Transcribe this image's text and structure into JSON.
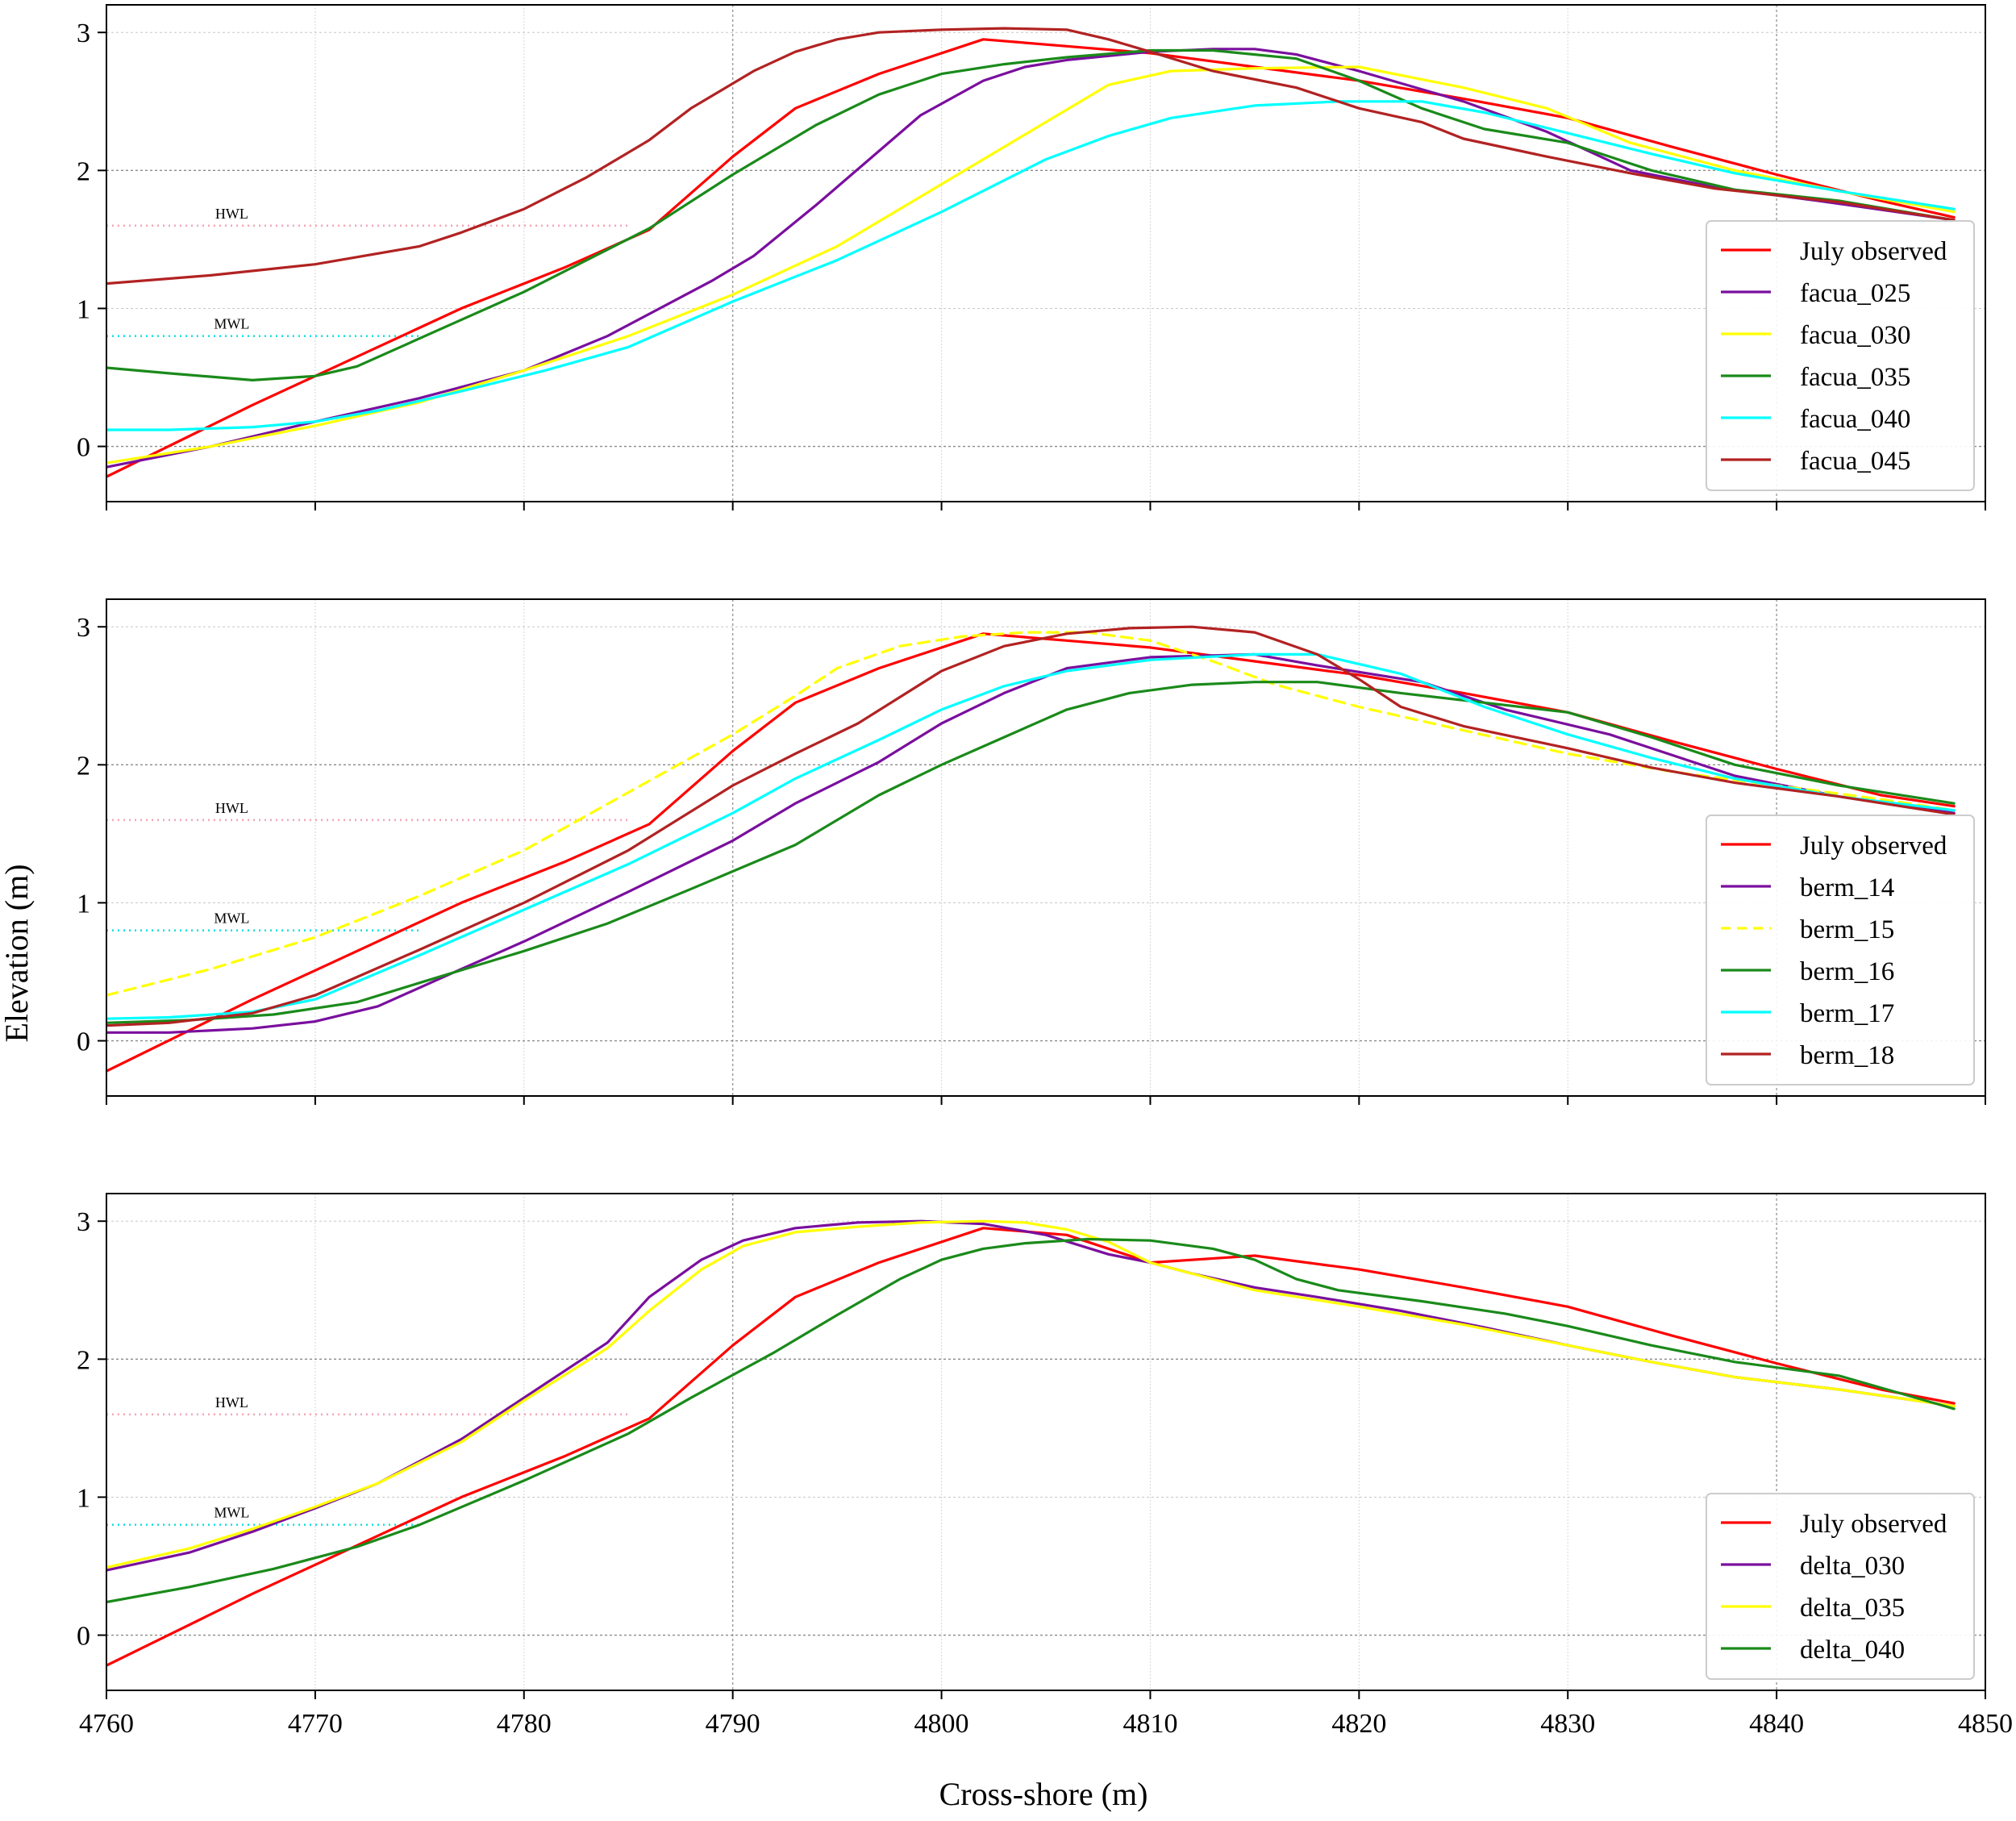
{
  "figure": {
    "xlabel": "Cross-shore (m)",
    "ylabel": "Elevation (m)"
  },
  "chart_data": [
    {
      "type": "line",
      "panel": "top",
      "xlim": [
        4760,
        4850
      ],
      "ylim": [
        -0.4,
        3.2
      ],
      "xticks": [
        4760,
        4770,
        4780,
        4790,
        4800,
        4810,
        4820,
        4830,
        4840,
        4850
      ],
      "yticks": [
        0,
        1,
        2,
        3
      ],
      "grid": true,
      "show_xtick_labels": false,
      "legend_position": "bottom-right",
      "reference_lines": [
        {
          "name": "HWL",
          "y": 1.6,
          "x_range": [
            4760,
            4785
          ],
          "color": "#f4a6b8",
          "style": "dotted"
        },
        {
          "name": "MWL",
          "y": 0.8,
          "x_range": [
            4760,
            4775
          ],
          "color": "#1be0e0",
          "style": "dotted"
        }
      ],
      "series": [
        {
          "name": "July observed",
          "color": "#ff0000",
          "dash": false,
          "x": [
            4760,
            4767,
            4772,
            4777,
            4782,
            4786,
            4790,
            4793,
            4797,
            4802,
            4806,
            4810,
            4815,
            4820,
            4825,
            4830,
            4835,
            4840,
            4845,
            4848.5
          ],
          "y": [
            -0.22,
            0.3,
            0.65,
            1.0,
            1.3,
            1.57,
            2.1,
            2.45,
            2.7,
            2.95,
            2.9,
            2.85,
            2.75,
            2.65,
            2.52,
            2.38,
            2.17,
            1.97,
            1.78,
            1.66
          ]
        },
        {
          "name": "facua_025",
          "color": "#7a0f9e",
          "dash": false,
          "x": [
            4760,
            4765,
            4770,
            4775,
            4780,
            4784,
            4789,
            4791,
            4794,
            4799,
            4802,
            4804,
            4806,
            4810,
            4813,
            4815,
            4817,
            4820,
            4825,
            4829,
            4833,
            4837,
            4842,
            4848.5
          ],
          "y": [
            -0.15,
            0.0,
            0.18,
            0.35,
            0.55,
            0.8,
            1.2,
            1.38,
            1.75,
            2.4,
            2.65,
            2.75,
            2.8,
            2.86,
            2.88,
            2.88,
            2.84,
            2.72,
            2.5,
            2.28,
            2.0,
            1.88,
            1.78,
            1.64
          ]
        },
        {
          "name": "facua_030",
          "color": "#ffff00",
          "dash": false,
          "x": [
            4760,
            4765,
            4770,
            4775,
            4780,
            4785,
            4790,
            4795,
            4800,
            4805,
            4808,
            4811,
            4815,
            4820,
            4825,
            4829,
            4833,
            4838,
            4843,
            4848.5
          ],
          "y": [
            -0.12,
            0.0,
            0.15,
            0.32,
            0.55,
            0.8,
            1.1,
            1.45,
            1.9,
            2.35,
            2.62,
            2.72,
            2.74,
            2.75,
            2.6,
            2.45,
            2.2,
            2.0,
            1.85,
            1.7
          ]
        },
        {
          "name": "facua_035",
          "color": "#1a8a1a",
          "dash": false,
          "x": [
            4760,
            4763,
            4767,
            4770,
            4772,
            4776,
            4780,
            4786,
            4790,
            4794,
            4797,
            4800,
            4803,
            4806,
            4810,
            4813,
            4817,
            4820,
            4823,
            4826,
            4830,
            4834,
            4838,
            4843,
            4848.5
          ],
          "y": [
            0.57,
            0.53,
            0.48,
            0.51,
            0.58,
            0.85,
            1.12,
            1.58,
            1.97,
            2.33,
            2.55,
            2.7,
            2.77,
            2.82,
            2.87,
            2.87,
            2.81,
            2.65,
            2.45,
            2.3,
            2.2,
            2.0,
            1.86,
            1.78,
            1.64
          ]
        },
        {
          "name": "facua_040",
          "color": "#00ffff",
          "dash": false,
          "x": [
            4760,
            4763,
            4767,
            4770,
            4773,
            4777,
            4781,
            4785,
            4790,
            4795,
            4800,
            4805,
            4808,
            4811,
            4815,
            4819,
            4823,
            4826,
            4830,
            4834,
            4838,
            4843,
            4848.5
          ],
          "y": [
            0.12,
            0.12,
            0.14,
            0.18,
            0.26,
            0.4,
            0.55,
            0.72,
            1.05,
            1.35,
            1.7,
            2.08,
            2.25,
            2.38,
            2.47,
            2.5,
            2.5,
            2.42,
            2.27,
            2.12,
            1.98,
            1.85,
            1.72
          ]
        },
        {
          "name": "facua_045",
          "color": "#b22222",
          "dash": false,
          "x": [
            4760,
            4765,
            4770,
            4775,
            4777,
            4780,
            4783,
            4786,
            4788,
            4791,
            4793,
            4795,
            4797,
            4800,
            4803,
            4806,
            4808,
            4810,
            4813,
            4817,
            4820,
            4823,
            4825,
            4829,
            4833,
            4837,
            4843,
            4848.5
          ],
          "y": [
            1.18,
            1.24,
            1.32,
            1.45,
            1.55,
            1.72,
            1.95,
            2.22,
            2.45,
            2.72,
            2.86,
            2.95,
            3.0,
            3.02,
            3.03,
            3.02,
            2.95,
            2.86,
            2.72,
            2.6,
            2.45,
            2.35,
            2.23,
            2.1,
            1.98,
            1.87,
            1.77,
            1.64
          ]
        }
      ]
    },
    {
      "type": "line",
      "panel": "middle",
      "xlim": [
        4760,
        4850
      ],
      "ylim": [
        -0.4,
        3.2
      ],
      "xticks": [
        4760,
        4770,
        4780,
        4790,
        4800,
        4810,
        4820,
        4830,
        4840,
        4850
      ],
      "yticks": [
        0,
        1,
        2,
        3
      ],
      "grid": true,
      "show_xtick_labels": false,
      "legend_position": "bottom-right",
      "reference_lines": [
        {
          "name": "HWL",
          "y": 1.6,
          "x_range": [
            4760,
            4785
          ],
          "color": "#f4a6b8",
          "style": "dotted"
        },
        {
          "name": "MWL",
          "y": 0.8,
          "x_range": [
            4760,
            4775
          ],
          "color": "#1be0e0",
          "style": "dotted"
        }
      ],
      "series": [
        {
          "name": "July observed",
          "color": "#ff0000",
          "dash": false,
          "x": [
            4760,
            4767,
            4772,
            4777,
            4782,
            4786,
            4790,
            4793,
            4797,
            4802,
            4806,
            4810,
            4815,
            4820,
            4825,
            4830,
            4835,
            4840,
            4845,
            4848.5
          ],
          "y": [
            -0.22,
            0.3,
            0.65,
            1.0,
            1.3,
            1.57,
            2.1,
            2.45,
            2.7,
            2.95,
            2.9,
            2.85,
            2.75,
            2.65,
            2.52,
            2.38,
            2.17,
            1.97,
            1.78,
            1.7
          ]
        },
        {
          "name": "berm_14",
          "color": "#7a0f9e",
          "dash": false,
          "x": [
            4760,
            4763,
            4767,
            4770,
            4773,
            4777,
            4780,
            4785,
            4790,
            4793,
            4797,
            4800,
            4803,
            4806,
            4810,
            4815,
            4818,
            4823,
            4827,
            4832,
            4838,
            4843,
            4848.5
          ],
          "y": [
            0.06,
            0.06,
            0.09,
            0.14,
            0.25,
            0.52,
            0.72,
            1.08,
            1.45,
            1.72,
            2.02,
            2.3,
            2.52,
            2.7,
            2.78,
            2.8,
            2.72,
            2.6,
            2.4,
            2.22,
            1.92,
            1.77,
            1.65
          ]
        },
        {
          "name": "berm_15",
          "color": "#ffff00",
          "dash": true,
          "x": [
            4760,
            4765,
            4770,
            4775,
            4780,
            4785,
            4790,
            4793,
            4795,
            4798,
            4801,
            4804,
            4807,
            4810,
            4813,
            4816,
            4820,
            4825,
            4830,
            4835,
            4840,
            4845,
            4848.5
          ],
          "y": [
            0.33,
            0.52,
            0.75,
            1.05,
            1.38,
            1.8,
            2.22,
            2.5,
            2.7,
            2.86,
            2.93,
            2.96,
            2.96,
            2.9,
            2.75,
            2.58,
            2.42,
            2.25,
            2.08,
            1.95,
            1.85,
            1.75,
            1.67
          ]
        },
        {
          "name": "berm_16",
          "color": "#1a8a1a",
          "dash": false,
          "x": [
            4760,
            4764,
            4768,
            4772,
            4775,
            4780,
            4784,
            4788,
            4793,
            4797,
            4800,
            4803,
            4806,
            4809,
            4812,
            4815,
            4818,
            4822,
            4826,
            4830,
            4834,
            4838,
            4843,
            4848.5
          ],
          "y": [
            0.13,
            0.15,
            0.19,
            0.28,
            0.42,
            0.65,
            0.85,
            1.1,
            1.42,
            1.78,
            2.0,
            2.2,
            2.4,
            2.52,
            2.58,
            2.6,
            2.6,
            2.52,
            2.45,
            2.38,
            2.2,
            2.0,
            1.85,
            1.72
          ]
        },
        {
          "name": "berm_17",
          "color": "#00ffff",
          "dash": false,
          "x": [
            4760,
            4763,
            4767,
            4770,
            4775,
            4780,
            4785,
            4790,
            4793,
            4797,
            4800,
            4803,
            4806,
            4810,
            4815,
            4818,
            4822,
            4826,
            4830,
            4834,
            4838,
            4843,
            4848.5
          ],
          "y": [
            0.16,
            0.17,
            0.21,
            0.3,
            0.62,
            0.95,
            1.28,
            1.65,
            1.9,
            2.18,
            2.4,
            2.57,
            2.68,
            2.76,
            2.8,
            2.8,
            2.66,
            2.42,
            2.22,
            2.05,
            1.9,
            1.77,
            1.67
          ]
        },
        {
          "name": "berm_18",
          "color": "#b22222",
          "dash": false,
          "x": [
            4760,
            4763,
            4767,
            4770,
            4775,
            4780,
            4785,
            4790,
            4793,
            4796,
            4800,
            4803,
            4806,
            4809,
            4812,
            4815,
            4818,
            4820,
            4822,
            4825,
            4830,
            4834,
            4838,
            4843,
            4848.5
          ],
          "y": [
            0.11,
            0.13,
            0.2,
            0.33,
            0.66,
            1.0,
            1.38,
            1.85,
            2.08,
            2.3,
            2.68,
            2.86,
            2.95,
            2.99,
            3.0,
            2.96,
            2.8,
            2.62,
            2.42,
            2.28,
            2.12,
            1.98,
            1.87,
            1.77,
            1.64
          ]
        }
      ]
    },
    {
      "type": "line",
      "panel": "bottom",
      "xlim": [
        4760,
        4850
      ],
      "ylim": [
        -0.4,
        3.2
      ],
      "xticks": [
        4760,
        4770,
        4780,
        4790,
        4800,
        4810,
        4820,
        4830,
        4840,
        4850
      ],
      "yticks": [
        0,
        1,
        2,
        3
      ],
      "grid": true,
      "show_xtick_labels": true,
      "legend_position": "bottom-right",
      "reference_lines": [
        {
          "name": "HWL",
          "y": 1.6,
          "x_range": [
            4760,
            4785
          ],
          "color": "#f4a6b8",
          "style": "dotted"
        },
        {
          "name": "MWL",
          "y": 0.8,
          "x_range": [
            4760,
            4775
          ],
          "color": "#1be0e0",
          "style": "dotted"
        }
      ],
      "series": [
        {
          "name": "July observed",
          "color": "#ff0000",
          "dash": false,
          "x": [
            4760,
            4767,
            4772,
            4777,
            4782,
            4786,
            4790,
            4793,
            4797,
            4802,
            4806,
            4810,
            4815,
            4820,
            4825,
            4830,
            4835,
            4840,
            4845,
            4848.5
          ],
          "y": [
            -0.22,
            0.3,
            0.65,
            1.0,
            1.3,
            1.57,
            2.1,
            2.45,
            2.7,
            2.95,
            2.9,
            2.7,
            2.75,
            2.65,
            2.52,
            2.38,
            2.17,
            1.97,
            1.78,
            1.68
          ]
        },
        {
          "name": "delta_030",
          "color": "#7a0f9e",
          "dash": false,
          "x": [
            4760,
            4764,
            4767,
            4770,
            4773,
            4777,
            4780,
            4784,
            4786,
            4788.5,
            4790.5,
            4793,
            4796,
            4799,
            4802,
            4805,
            4808,
            4810,
            4812,
            4815,
            4818,
            4822,
            4826,
            4830,
            4834,
            4838,
            4843,
            4848.5
          ],
          "y": [
            0.47,
            0.6,
            0.75,
            0.92,
            1.1,
            1.42,
            1.72,
            2.12,
            2.45,
            2.72,
            2.86,
            2.95,
            2.99,
            3.0,
            2.98,
            2.9,
            2.76,
            2.7,
            2.62,
            2.52,
            2.45,
            2.35,
            2.23,
            2.1,
            1.98,
            1.87,
            1.78,
            1.66
          ]
        },
        {
          "name": "delta_035",
          "color": "#ffff00",
          "dash": false,
          "x": [
            4760,
            4764,
            4767,
            4770,
            4773,
            4777,
            4780,
            4784,
            4786,
            4788.5,
            4790.5,
            4793,
            4796,
            4799,
            4802,
            4804,
            4806,
            4808,
            4810,
            4815,
            4820,
            4825,
            4830,
            4834,
            4838,
            4843,
            4848.5
          ],
          "y": [
            0.49,
            0.63,
            0.77,
            0.93,
            1.1,
            1.4,
            1.7,
            2.08,
            2.35,
            2.65,
            2.82,
            2.92,
            2.96,
            2.99,
            3.0,
            2.99,
            2.94,
            2.85,
            2.7,
            2.5,
            2.38,
            2.25,
            2.1,
            1.98,
            1.87,
            1.78,
            1.66
          ]
        },
        {
          "name": "delta_040",
          "color": "#1a8a1a",
          "dash": false,
          "x": [
            4760,
            4764,
            4768,
            4772,
            4775,
            4780,
            4785,
            4788,
            4792,
            4795,
            4798,
            4800,
            4802,
            4804,
            4807,
            4810,
            4813,
            4815,
            4817,
            4819,
            4823,
            4827,
            4830,
            4834,
            4838,
            4843,
            4848.5
          ],
          "y": [
            0.24,
            0.35,
            0.48,
            0.64,
            0.8,
            1.12,
            1.46,
            1.72,
            2.05,
            2.32,
            2.58,
            2.72,
            2.8,
            2.84,
            2.87,
            2.86,
            2.8,
            2.72,
            2.58,
            2.5,
            2.42,
            2.33,
            2.24,
            2.1,
            1.98,
            1.88,
            1.64
          ]
        }
      ]
    }
  ]
}
